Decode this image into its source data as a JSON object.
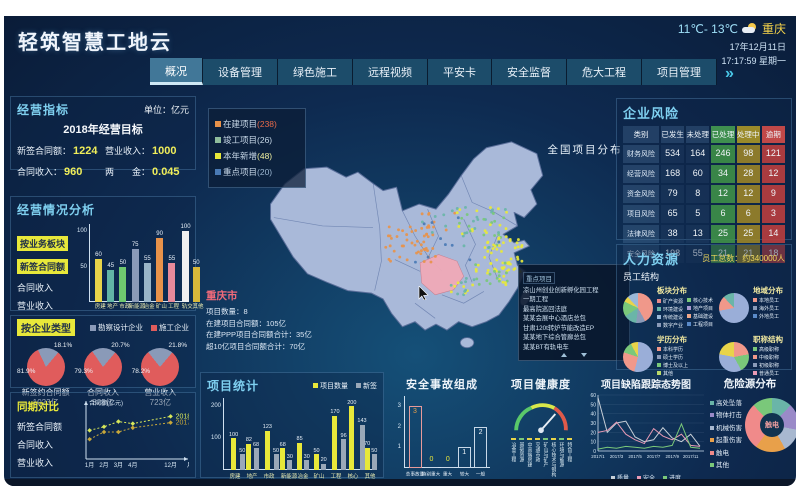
{
  "header": {
    "title": "轻筑智慧工地云",
    "temp": "11℃- 13℃",
    "city": "重庆",
    "date": "17年12月11日",
    "time": "17:17:59 星期一"
  },
  "nav": {
    "tabs": [
      {
        "label": "概况",
        "active": true
      },
      {
        "label": "设备管理",
        "active": false
      },
      {
        "label": "绿色施工",
        "active": false
      },
      {
        "label": "远程视频",
        "active": false
      },
      {
        "label": "平安卡",
        "active": false
      },
      {
        "label": "安全监督",
        "active": false
      },
      {
        "label": "危大工程",
        "active": false
      },
      {
        "label": "项目管理",
        "active": false
      }
    ],
    "more": "»"
  },
  "indicators": {
    "title": "经营指标",
    "unit": "单位：亿元",
    "subtitle": "2018年经营目标",
    "metrics": [
      {
        "label": "新签合同额：",
        "value": "1224"
      },
      {
        "label": "营业收入：",
        "value": "1000"
      },
      {
        "label": "合同收入：",
        "value": "960"
      },
      {
        "label": "两　　金：",
        "value": "0.045"
      }
    ]
  },
  "operation": {
    "title": "经营情况分析",
    "filters": [
      {
        "label": "按业务板块",
        "active": true
      },
      {
        "label": "新签合同额",
        "active": true
      },
      {
        "label": "合同收入",
        "active": false
      },
      {
        "label": "营业收入",
        "active": false
      }
    ],
    "chart_data": {
      "type": "bar",
      "categories": [
        "房建",
        "地产",
        "市政",
        "新能源",
        "冶金",
        "矿山",
        "工程",
        "轨交",
        "其他"
      ],
      "values": [
        60,
        45,
        50,
        75,
        55,
        90,
        55,
        100,
        50
      ],
      "colors": [
        "#e8d44a",
        "#62b5a5",
        "#6fc86f",
        "#8a9ab8",
        "#9ab5c8",
        "#e8924a",
        "#e88a9a",
        "#f0f0f0",
        "#d8b83a"
      ],
      "yticks": [
        50,
        100
      ],
      "ymax": 110
    }
  },
  "enterprise_type": {
    "title": "按企业类型",
    "legend": [
      {
        "label": "勘察设计企业",
        "color": "#8a9ab8"
      },
      {
        "label": "施工企业",
        "color": "#e05c5c"
      }
    ],
    "pies": [
      {
        "label": "新签约合同额",
        "amount": "1023亿",
        "main_pct": "81.9%",
        "sub_pct": "18.1%",
        "main": 81.9
      },
      {
        "label": "合同收入",
        "amount": "823亿",
        "main_pct": "79.3%",
        "sub_pct": "20.7%",
        "main": 79.3
      },
      {
        "label": "营业收入",
        "amount": "723亿",
        "main_pct": "78.2%",
        "sub_pct": "21.8%",
        "main": 78.2
      }
    ],
    "main_color": "#e05c5c",
    "sub_color": "#8a9ab8"
  },
  "compare": {
    "title": "同期对比",
    "filters": [
      "新签合同额",
      "合同收入",
      "营业收入"
    ],
    "chart_data": {
      "type": "line",
      "ylabel": "合同额(亿元)",
      "xlabel": "月份",
      "xticks": [
        "1月",
        "2月",
        "3月",
        "4月",
        "12月"
      ],
      "series": [
        {
          "name": "2018年",
          "color": "#d8e85a",
          "values": [
            55,
            62,
            72,
            68,
            82
          ]
        },
        {
          "name": "2017年",
          "color": "#c8a83a",
          "values": [
            38,
            52,
            52,
            60,
            70
          ]
        }
      ]
    }
  },
  "map": {
    "title": "全国项目分布",
    "legend": [
      {
        "label": "在建项目",
        "count": "(238)",
        "color": "#e8924a",
        "count_color": "#e86a4a"
      },
      {
        "label": "竣工项目",
        "count": "(26)",
        "color": "#8fbc9b",
        "count_color": "#c8d8e8"
      },
      {
        "label": "本年新增",
        "count": "(48)",
        "color": "#e8e83a",
        "count_color": "#f0f0a0"
      },
      {
        "label": "重点项目",
        "count": "(20)",
        "color": "#4a7ab5",
        "count_color": "#9ab5d0"
      }
    ],
    "city_info": {
      "city": "重庆市",
      "lines": [
        "项目数量：8",
        "在建项目合同额：105亿",
        "在建PPP项目合同额合计：35亿",
        "超10亿项目合同额合计：70亿"
      ]
    },
    "key_projects": {
      "title": "重点项目",
      "items": [
        "凉山州创业创新孵化园工程",
        "一期工程",
        "最高院巡回法庭",
        "某某会展中心酒店总包",
        "甘肃120t转炉节能改造EP",
        "某某地下综合管廊总包",
        "某某BT有轨电车"
      ]
    }
  },
  "project_stats": {
    "title": "项目统计",
    "chart_data": {
      "type": "bar",
      "categories": [
        "房建",
        "地产",
        "市政",
        "新能源",
        "冶金",
        "矿山",
        "工程",
        "核心",
        "其他"
      ],
      "series": [
        {
          "name": "项目数量",
          "color": "#e8e83a",
          "values": [
            100,
            82,
            123,
            68,
            85,
            50,
            170,
            200,
            70
          ]
        },
        {
          "name": "新签",
          "color": "#9aa8b8",
          "values": [
            50,
            68,
            50,
            30,
            30,
            20,
            96,
            143,
            50
          ]
        }
      ],
      "yticks": [
        100,
        200
      ],
      "ymax": 220
    }
  },
  "accidents": {
    "title": "安全事故组成",
    "chart_data": {
      "type": "bar",
      "categories": [
        "总事故量",
        "特别重大",
        "重大",
        "较大",
        "一般"
      ],
      "values": [
        3,
        0,
        0,
        1,
        2
      ],
      "yticks": [
        1,
        2,
        3
      ],
      "ymax": 3.4,
      "value_colors": [
        "#e8a04a",
        "#e8e83a",
        "#e8e83a",
        "#f0f4f8",
        "#f0f4f8"
      ],
      "border_colors": [
        "#e89a9a",
        "#c8d8e8",
        "#c8d8e8",
        "#c8d8e8",
        "#c8d8e8"
      ]
    }
  },
  "health": {
    "title": "项目健康度",
    "labels": [
      "冶金工程",
      "基础资源",
      "中高端房建",
      "交通市政",
      "矿山与矿产",
      "核心技术与钢构",
      "环境与能源",
      "特色工程"
    ],
    "tick_colors": [
      "#e8d44a",
      "#7ac87a",
      "#e8d44a",
      "#e8d44a",
      "#7ac87a",
      "#e8d44a",
      "#7ac87a",
      "#e8d44a"
    ]
  },
  "risk": {
    "title": "企业风险",
    "headers": [
      "类别",
      "已发生",
      "未处理",
      "已处理",
      "处理中",
      "逾期"
    ],
    "rows": [
      {
        "label": "财务风险",
        "values": [
          534,
          164,
          246,
          98,
          121
        ]
      },
      {
        "label": "经营风险",
        "values": [
          168,
          60,
          34,
          28,
          12
        ]
      },
      {
        "label": "资金风险",
        "values": [
          79,
          8,
          12,
          12,
          9
        ]
      },
      {
        "label": "项目风险",
        "values": [
          65,
          5,
          6,
          6,
          3
        ]
      },
      {
        "label": "法律风险",
        "values": [
          38,
          13,
          25,
          25,
          14
        ]
      },
      {
        "label": "安全风险",
        "values": [
          198,
          55,
          21,
          21,
          18
        ]
      }
    ]
  },
  "hr": {
    "title": "人力资源",
    "total": "员工总数：约340000人",
    "subtitle": "员工结构",
    "groups": [
      {
        "name": "板块分布",
        "cols": 2,
        "slices": [
          {
            "color": "#f0988a",
            "value": 42
          },
          {
            "color": "#8a9ab8",
            "value": 10
          },
          {
            "color": "#6ab5a8",
            "value": 14
          },
          {
            "color": "#7ac87a",
            "value": 16
          },
          {
            "color": "#e8d44a",
            "value": 6
          },
          {
            "color": "#9ab8d8",
            "value": 12
          }
        ],
        "legend": [
          {
            "label": "矿产资源",
            "color": "#e88a8a"
          },
          {
            "label": "环境建设",
            "color": "#6ab5a8"
          },
          {
            "label": "传统建设",
            "color": "#9ab8d8"
          },
          {
            "label": "数字产业",
            "color": "#8a9ab8"
          },
          {
            "label": "核心技术",
            "color": "#7ac87a"
          },
          {
            "label": "地产项目",
            "color": "#a89ad0"
          },
          {
            "label": "基础建设",
            "color": "#f0a88a"
          },
          {
            "label": "工程项目",
            "color": "#5a8ac8"
          }
        ]
      },
      {
        "name": "地域分布",
        "cols": 1,
        "slices": [
          {
            "color": "#9aaed8",
            "value": 72
          },
          {
            "color": "#f0988a",
            "value": 16
          },
          {
            "color": "#6ab5a8",
            "value": 12
          }
        ],
        "legend": [
          {
            "label": "本地员工",
            "color": "#f0988a"
          },
          {
            "label": "海外员工",
            "color": "#8a9ab8"
          },
          {
            "label": "外地员工",
            "color": "#5a8ac8"
          }
        ]
      },
      {
        "name": "学历分布",
        "cols": 1,
        "slices": [
          {
            "color": "#9aaed8",
            "value": 54
          },
          {
            "color": "#f0988a",
            "value": 26
          },
          {
            "color": "#7ac87a",
            "value": 12
          },
          {
            "color": "#e8d44a",
            "value": 8
          }
        ],
        "legend": [
          {
            "label": "本科学历",
            "color": "#f0988a"
          },
          {
            "label": "硕士学历",
            "color": "#8a9ab8"
          },
          {
            "label": "博士及以上",
            "color": "#7ac87a"
          },
          {
            "label": "其他",
            "color": "#b8d86a"
          }
        ]
      },
      {
        "name": "职称结构",
        "cols": 1,
        "slices": [
          {
            "color": "#f0988a",
            "value": 22
          },
          {
            "color": "#7ac87a",
            "value": 20
          },
          {
            "color": "#9aaed8",
            "value": 36
          },
          {
            "color": "#e8d44a",
            "value": 22
          }
        ],
        "legend": [
          {
            "label": "高级职称",
            "color": "#7ac87a"
          },
          {
            "label": "中级职称",
            "color": "#f0988a"
          },
          {
            "label": "初级职称",
            "color": "#8a9ab8"
          },
          {
            "label": "普通员工",
            "color": "#e89ab5"
          }
        ]
      }
    ]
  },
  "defects": {
    "title": "项目缺陷跟踪态势图",
    "chart_data": {
      "type": "line",
      "yticks": [
        0,
        10,
        20,
        30,
        40,
        50,
        60
      ],
      "xticks": [
        "2017/1",
        "2017/3",
        "2017/5",
        "2017/7",
        "2017/9",
        "2017/11"
      ],
      "series": [
        {
          "name": "质量",
          "color": "#c8d0d8",
          "values": [
            57,
            20,
            30,
            32,
            15,
            10,
            12,
            25,
            14,
            10,
            18,
            5
          ]
        },
        {
          "name": "安全",
          "color": "#e89ab5",
          "values": [
            20,
            22,
            31,
            18,
            12,
            8,
            24,
            16,
            12,
            18,
            6,
            5
          ]
        },
        {
          "name": "进度",
          "color": "#7ac87a",
          "values": [
            2,
            4,
            3,
            5,
            4,
            3,
            5,
            4,
            6,
            29,
            4,
            3
          ]
        }
      ]
    }
  },
  "hazards": {
    "title": "危险源分布",
    "center_label": "触电",
    "chart_data": {
      "type": "pie",
      "slices": [
        {
          "label": "高处坠落",
          "color": "#6ab5a8",
          "value": 12
        },
        {
          "label": "物体打击",
          "color": "#9a8ac8",
          "value": 16
        },
        {
          "label": "机械伤害",
          "color": "#a8b8d0",
          "value": 14
        },
        {
          "label": "起重伤害",
          "color": "#e8a04a",
          "value": 18
        },
        {
          "label": "触电",
          "color": "#f08a8a",
          "value": 28
        },
        {
          "label": "其他",
          "color": "#7ac87a",
          "value": 12
        }
      ]
    }
  }
}
